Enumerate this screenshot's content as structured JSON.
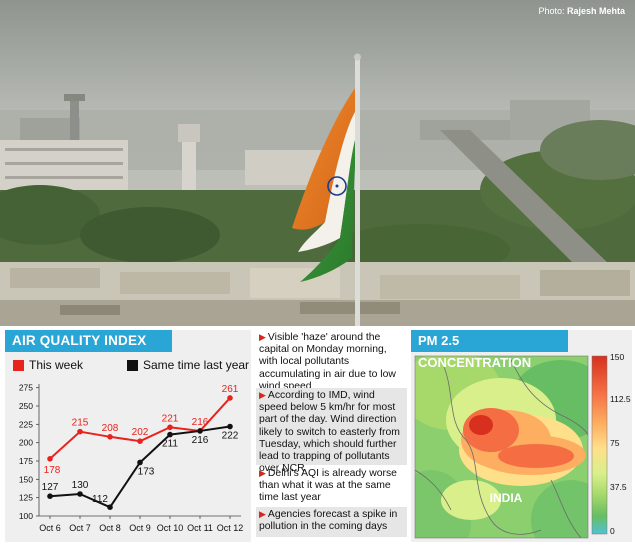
{
  "photo": {
    "credit_prefix": "Photo: ",
    "credit_name": "Rajesh Mehta"
  },
  "aqi_panel": {
    "legend": {
      "this_week": "This week",
      "last_year": "Same time last year"
    },
    "colors": {
      "this_week": "#e8231d",
      "last_year": "#111111",
      "title_bg": "#2aa6d6"
    }
  },
  "chart_data": {
    "type": "line",
    "title": "AIR QUALITY INDEX",
    "categories": [
      "Oct 6",
      "Oct 7",
      "Oct 8",
      "Oct 9",
      "Oct 10",
      "Oct 11",
      "Oct 12"
    ],
    "series": [
      {
        "name": "This week",
        "values": [
          178,
          215,
          208,
          202,
          221,
          216,
          261
        ]
      },
      {
        "name": "Same time last year",
        "values": [
          127,
          130,
          112,
          173,
          211,
          216,
          222
        ]
      }
    ],
    "yticks": [
      100,
      125,
      150,
      175,
      200,
      225,
      250,
      275
    ],
    "ylim": [
      100,
      280
    ],
    "grid": false,
    "legend": "top"
  },
  "bullets": [
    "Visible 'haze' around the capital on Monday morning, with local pollutants accumulating in air due to low wind speed",
    "According to IMD, wind speed below 5 km/hr for most part of the day. Wind direction likely to switch to easterly from Tuesday, which should further lead to trapping of pollutants over NCR",
    "Delhi's AQI is already worse than what it was at the same time last year",
    "Agencies forecast a spike in pollution in the coming days"
  ],
  "pm_panel": {
    "title": "PM 2.5 CONCENTRATION",
    "country_label": "INDIA",
    "colorbar_ticks": [
      "150",
      "112.5",
      "75",
      "37.5",
      "0"
    ],
    "colorbar_colors": [
      "#d7301f",
      "#f46d43",
      "#fdae61",
      "#fee08b",
      "#d9ef8b",
      "#a6d96a",
      "#66bd63",
      "#4fc3d6"
    ]
  }
}
